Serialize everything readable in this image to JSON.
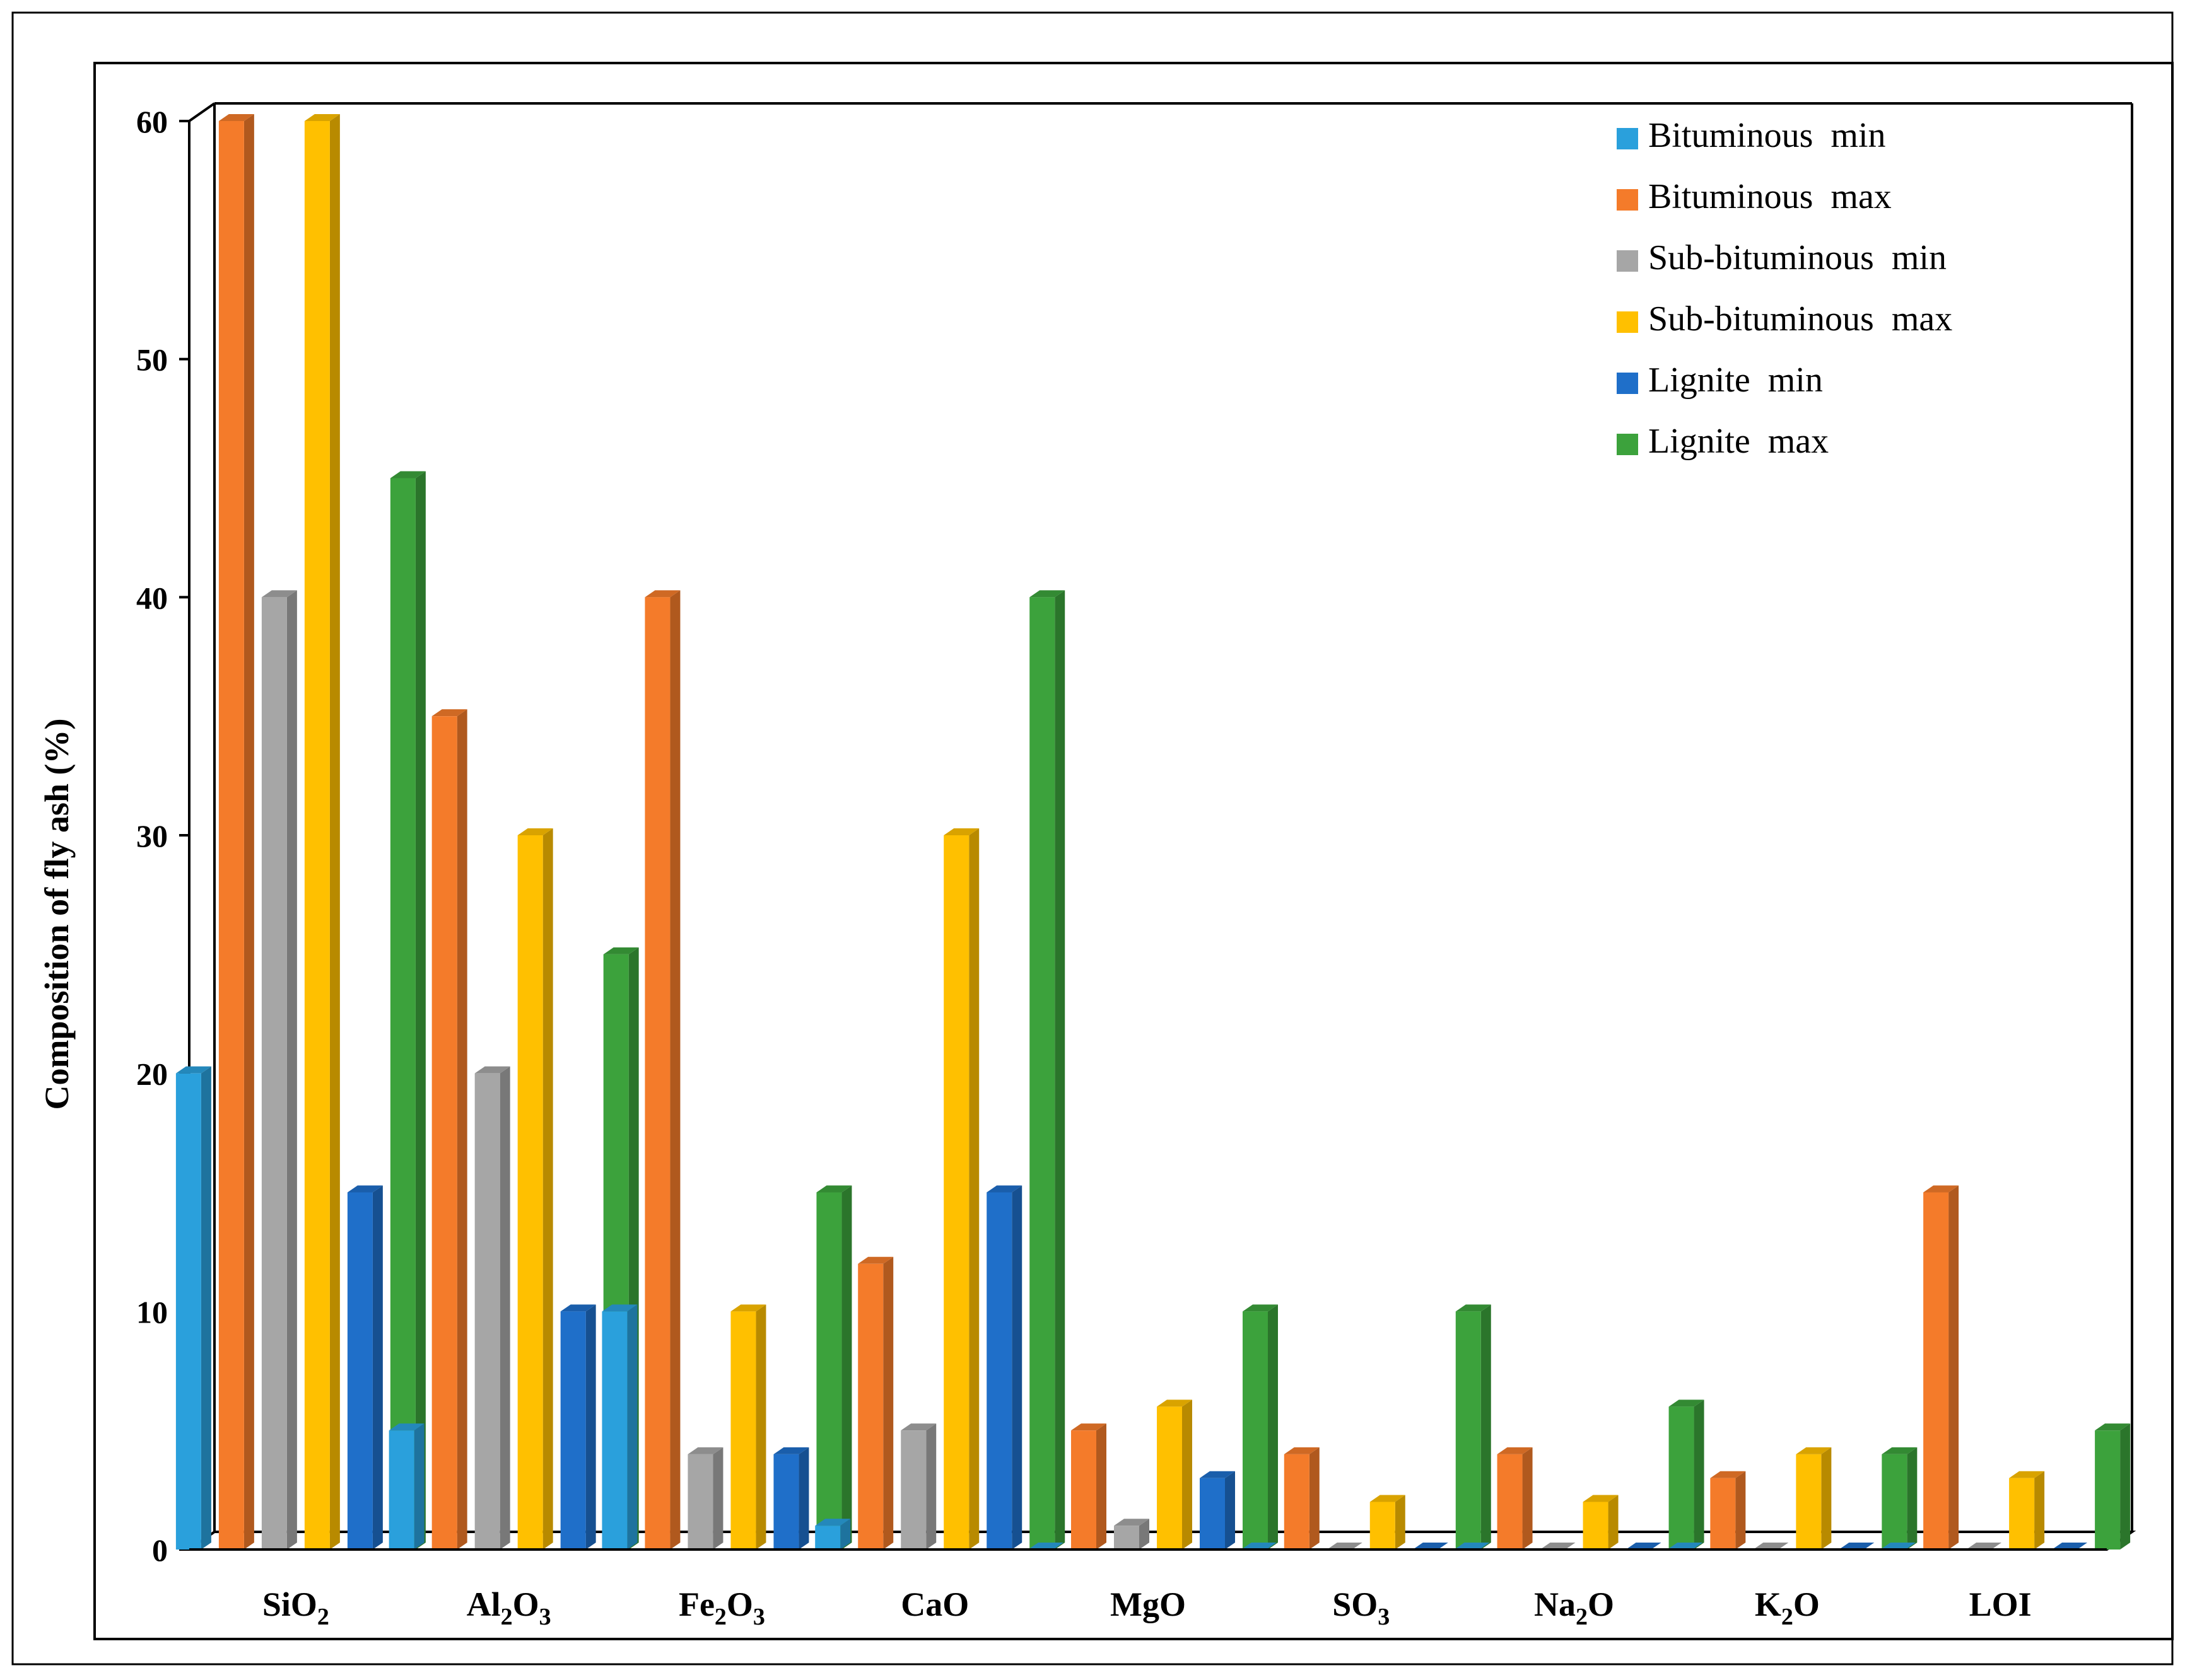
{
  "chart_data": {
    "type": "bar",
    "style": "3d-clustered-column",
    "title": "",
    "xlabel": "",
    "ylabel": "Composition of fly ash (%)",
    "ylim": [
      0,
      60
    ],
    "yticks": [
      0,
      10,
      20,
      30,
      40,
      50,
      60
    ],
    "grid": false,
    "legend_position": "top-right",
    "categories": [
      "SiO2",
      "Al2O3",
      "Fe2O3",
      "CaO",
      "MgO",
      "SO3",
      "Na2O",
      "K2O",
      "LOI"
    ],
    "category_labels": [
      {
        "base": "SiO",
        "sub": "2",
        "tail": ""
      },
      {
        "base": "Al",
        "sub": "2",
        "tail": "O",
        "sub2": "3"
      },
      {
        "base": "Fe",
        "sub": "2",
        "tail": "O",
        "sub2": "3"
      },
      {
        "base": "CaO",
        "sub": "",
        "tail": ""
      },
      {
        "base": "MgO",
        "sub": "",
        "tail": ""
      },
      {
        "base": "SO",
        "sub": "3",
        "tail": ""
      },
      {
        "base": "Na",
        "sub": "2",
        "tail": "O"
      },
      {
        "base": "K",
        "sub": "2",
        "tail": "O"
      },
      {
        "base": "LOI",
        "sub": "",
        "tail": ""
      }
    ],
    "series": [
      {
        "name": "Bituminous  min",
        "color": "#2aa0dc",
        "values": [
          20,
          5,
          10,
          1,
          0,
          0,
          0,
          0,
          0
        ]
      },
      {
        "name": "Bituminous  max",
        "color": "#f47b2a",
        "values": [
          60,
          35,
          40,
          12,
          5,
          4,
          4,
          3,
          15
        ]
      },
      {
        "name": "Sub-bituminous  min",
        "color": "#a6a6a6",
        "values": [
          40,
          20,
          4,
          5,
          1,
          0,
          0,
          0,
          0
        ]
      },
      {
        "name": "Sub-bituminous  max",
        "color": "#ffc000",
        "values": [
          60,
          30,
          10,
          30,
          6,
          2,
          2,
          4,
          3
        ]
      },
      {
        "name": "Lignite  min",
        "color": "#1f6fc9",
        "values": [
          15,
          10,
          4,
          15,
          3,
          0,
          0,
          0,
          0
        ]
      },
      {
        "name": "Lignite  max",
        "color": "#3ca23c",
        "values": [
          45,
          25,
          15,
          40,
          10,
          10,
          6,
          4,
          5
        ]
      }
    ]
  }
}
